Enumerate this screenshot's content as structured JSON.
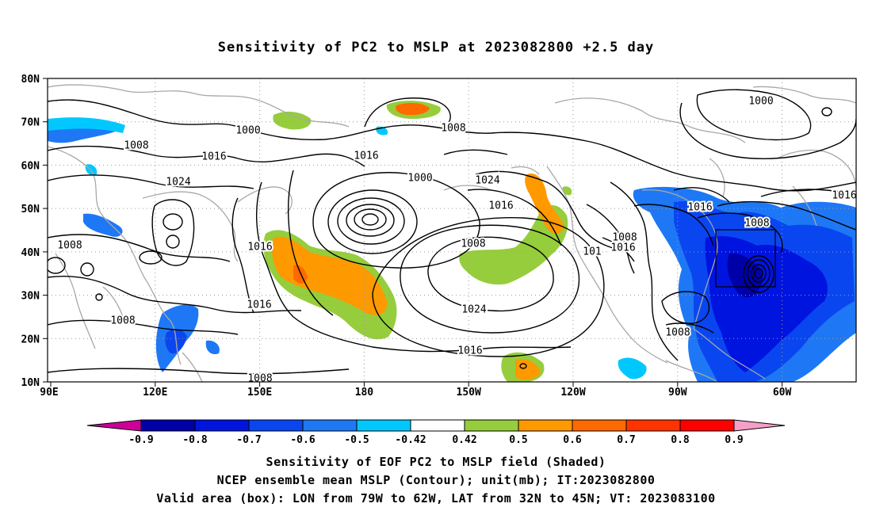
{
  "title": "Sensitivity of PC2 to MSLP at 2023082800 +2.5 day",
  "map": {
    "lat_labels": [
      "80N",
      "70N",
      "60N",
      "50N",
      "40N",
      "30N",
      "20N",
      "10N"
    ],
    "lon_labels": [
      "90E",
      "120E",
      "150E",
      "180",
      "150W",
      "120W",
      "90W",
      "60W"
    ],
    "contour_labels": [
      "1000",
      "1008",
      "1016",
      "1024",
      "1000",
      "1008",
      "1016",
      "1024",
      "1016",
      "1008",
      "1016",
      "1008",
      "1016",
      "1024",
      "1016",
      "1008",
      "1008",
      "1016",
      "1016",
      "1008",
      "101",
      "1008",
      "1016",
      "1000",
      "10",
      "1008"
    ],
    "valid_box": {
      "lon_from": "79W",
      "lon_to": "62W",
      "lat_from": "32N",
      "lat_to": "45N"
    }
  },
  "colorbar": {
    "labels": [
      "-0.9",
      "-0.8",
      "-0.7",
      "-0.6",
      "-0.5",
      "-0.42",
      "0.42",
      "0.5",
      "0.6",
      "0.7",
      "0.8",
      "0.9"
    ],
    "colors": [
      "#cc0099",
      "#0000a8",
      "#0014e0",
      "#0a46f0",
      "#1e78f5",
      "#00c8ff",
      "#ffffff",
      "#96cd3c",
      "#ff9900",
      "#ff6a00",
      "#ff3300",
      "#ff0000",
      "#f59ec8"
    ]
  },
  "caption": [
    "Sensitivity of EOF PC2 to MSLP field (Shaded)",
    "NCEP ensemble mean MSLP (Contour); unit(mb); IT:2023082800",
    "Valid area (box): LON from 79W to 62W, LAT from 32N to 45N; VT: 2023083100"
  ]
}
